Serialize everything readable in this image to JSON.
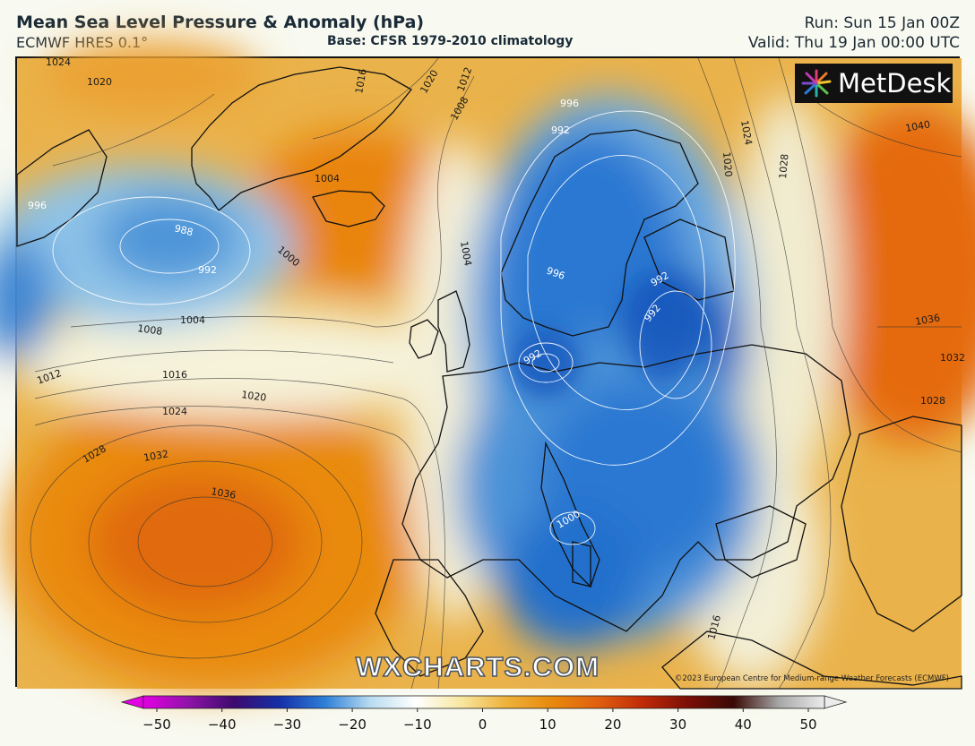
{
  "header": {
    "title": "Mean Sea Level Pressure & Anomaly (hPa)",
    "model": "ECMWF HRES 0.1°",
    "base": "Base: CFSR 1979-2010 climatology",
    "run": "Run: Sun 15 Jan 00Z",
    "valid": "Valid: Thu 19 Jan 00:00 UTC"
  },
  "logo": {
    "text": "MetDesk",
    "icon": "metdesk-starburst-icon"
  },
  "watermark": "WXCHARTS.COM",
  "copyright": "©2023 European Centre for Medium-range Weather Forecasts (ECMWF)",
  "colorbar": {
    "ticks": [
      "−50",
      "−40",
      "−30",
      "−20",
      "−10",
      "0",
      "10",
      "20",
      "30",
      "40",
      "50"
    ],
    "colors": [
      "#e400e4",
      "#8e14a8",
      "#3d0a6e",
      "#1430a8",
      "#2e7fd8",
      "#b9dcf0",
      "#ffffff",
      "#f8e7a0",
      "#eeb13a",
      "#e8890c",
      "#e06010",
      "#c02a08",
      "#7a0f06",
      "#3a0a05",
      "#a7a7a7",
      "#ececec"
    ]
  },
  "isobar_labels": [
    "1024",
    "1020",
    "1016",
    "1012",
    "1020",
    "1008",
    "1004",
    "996",
    "988",
    "992",
    "1000",
    "1004",
    "1008",
    "1012",
    "1016",
    "1020",
    "1024",
    "1028",
    "1032",
    "1036",
    "1004",
    "996",
    "992",
    "996",
    "992",
    "992",
    "992",
    "1000",
    "1016",
    "1024",
    "1020",
    "1028",
    "1040",
    "1036",
    "1032",
    "1028"
  ],
  "colors": {
    "positive_anomaly": "#eba127",
    "negative_anomaly": "#2a74cf",
    "neutral": "#f6f6e6"
  }
}
